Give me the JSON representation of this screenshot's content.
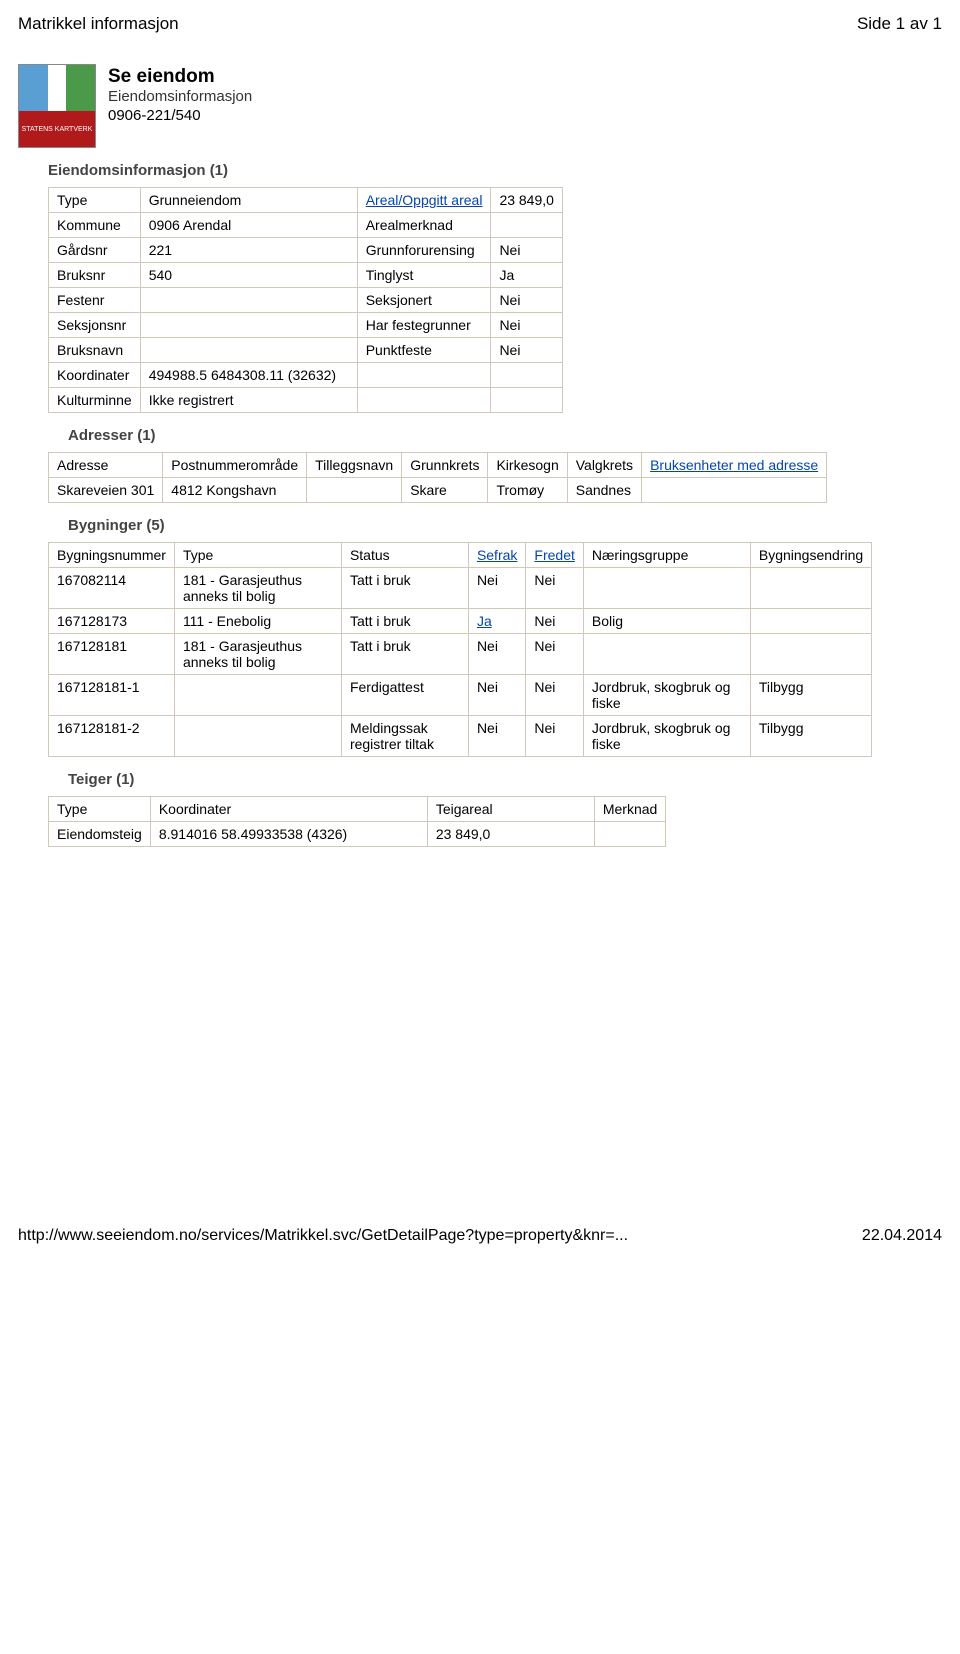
{
  "header": {
    "left": "Matrikkel informasjon",
    "right": "Side 1 av 1"
  },
  "branding": {
    "logo_text": "STATENS KARTVERK",
    "title": "Se eiendom",
    "subtitle": "Eiendomsinformasjon",
    "id": "0906-221/540"
  },
  "sections": {
    "eiendom_title": "Eiendomsinformasjon (1)",
    "adresser_title": "Adresser (1)",
    "bygninger_title": "Bygninger (5)",
    "teiger_title": "Teiger (1)"
  },
  "eiendom": {
    "rows": [
      [
        "Type",
        "Grunneiendom",
        "Areal/Oppgitt areal",
        "23 849,0"
      ],
      [
        "Kommune",
        "0906 Arendal",
        "Arealmerknad",
        ""
      ],
      [
        "Gårdsnr",
        "221",
        "Grunnforurensing",
        "Nei"
      ],
      [
        "Bruksnr",
        "540",
        "Tinglyst",
        "Ja"
      ],
      [
        "Festenr",
        "",
        "Seksjonert",
        "Nei"
      ],
      [
        "Seksjonsnr",
        "",
        "Har festegrunner",
        "Nei"
      ],
      [
        "Bruksnavn",
        "",
        "Punktfeste",
        "Nei"
      ],
      [
        "Koordinater",
        "494988.5 6484308.11 (32632)",
        "",
        ""
      ],
      [
        "Kulturminne",
        "Ikke registrert",
        "",
        ""
      ]
    ],
    "link_cell": "Areal/Oppgitt areal"
  },
  "adresser": {
    "headers": [
      "Adresse",
      "Postnummerområde",
      "Tilleggsnavn",
      "Grunnkrets",
      "Kirkesogn",
      "Valgkrets",
      "Bruksenheter med adresse"
    ],
    "row": [
      "Skareveien 301",
      "4812 Kongshavn",
      "",
      "Skare",
      "Tromøy",
      "Sandnes",
      ""
    ],
    "link_header": "Bruksenheter med adresse"
  },
  "bygninger": {
    "headers": [
      "Bygningsnummer",
      "Type",
      "Status",
      "Sefrak",
      "Fredet",
      "Næringsgruppe",
      "Bygningsendring"
    ],
    "link_headers": [
      "Sefrak",
      "Fredet"
    ],
    "rows": [
      {
        "cells": [
          "167082114",
          "181 - Garasjeuthus anneks til bolig",
          "Tatt i bruk",
          "Nei",
          "Nei",
          "",
          ""
        ],
        "link_col": null
      },
      {
        "cells": [
          "167128173",
          "111 - Enebolig",
          "Tatt i bruk",
          "Ja",
          "Nei",
          "Bolig",
          ""
        ],
        "link_col": 3
      },
      {
        "cells": [
          "167128181",
          "181 - Garasjeuthus anneks til bolig",
          "Tatt i bruk",
          "Nei",
          "Nei",
          "",
          ""
        ],
        "link_col": null
      },
      {
        "cells": [
          "167128181-1",
          "",
          "Ferdigattest",
          "Nei",
          "Nei",
          "Jordbruk, skogbruk og fiske",
          "Tilbygg"
        ],
        "link_col": null
      },
      {
        "cells": [
          "167128181-2",
          "",
          "Meldingssak registrer tiltak",
          "Nei",
          "Nei",
          "Jordbruk, skogbruk og fiske",
          "Tilbygg"
        ],
        "link_col": null
      }
    ]
  },
  "teiger": {
    "headers": [
      "Type",
      "Koordinater",
      "Teigareal",
      "Merknad"
    ],
    "row": [
      "Eiendomsteig",
      "8.914016 58.49933538 (4326)",
      "23 849,0",
      ""
    ]
  },
  "footer": {
    "url": "http://www.seeiendom.no/services/Matrikkel.svc/GetDetailPage?type=property&knr=...",
    "date": "22.04.2014"
  }
}
